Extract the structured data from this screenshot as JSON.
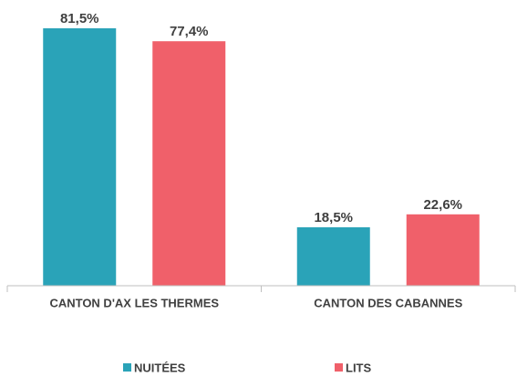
{
  "chart_data": {
    "type": "bar",
    "categories": [
      "CANTON D'AX LES THERMES",
      "CANTON DES CABANNES"
    ],
    "series": [
      {
        "name": "NUITÉES",
        "color": "#2aa3b8",
        "values": [
          81.5,
          18.5
        ],
        "value_labels": [
          "81,5%",
          "18,5%"
        ]
      },
      {
        "name": "LITS",
        "color": "#f0606a",
        "values": [
          77.4,
          22.6
        ],
        "value_labels": [
          "77,4%",
          "22,6%"
        ]
      }
    ]
  }
}
